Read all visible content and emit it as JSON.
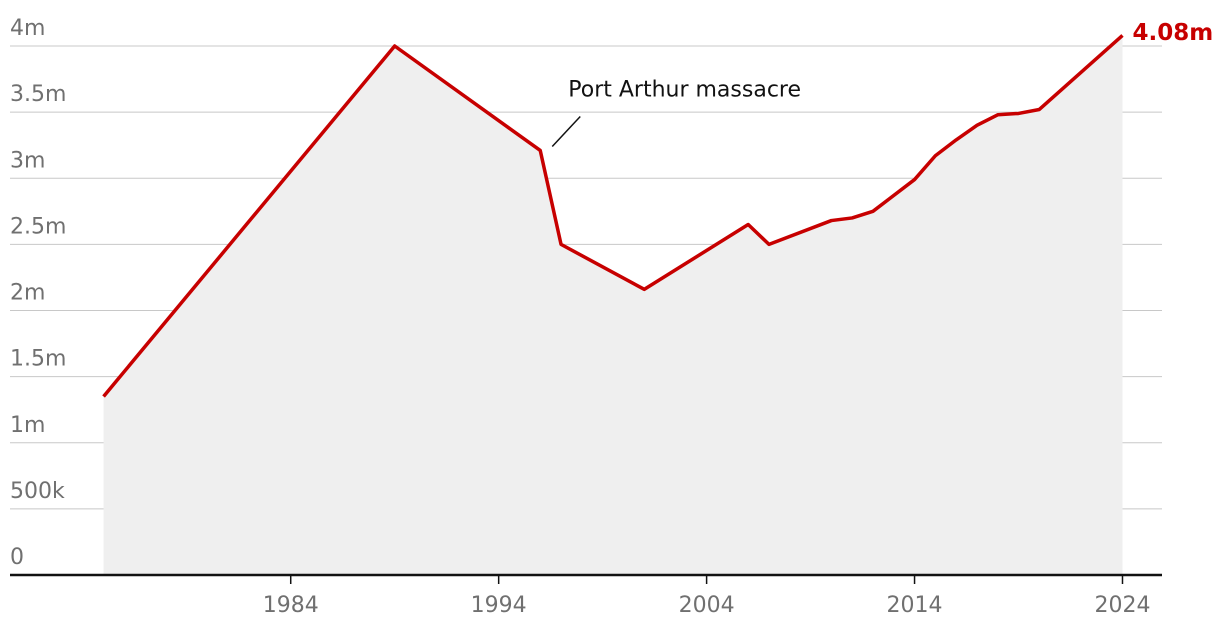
{
  "chart_data": {
    "type": "line",
    "annotation": "Port Arthur massacre",
    "x": [
      1975,
      1989,
      1996,
      1997,
      2001,
      2006,
      2007,
      2010,
      2011,
      2012,
      2014,
      2015,
      2016,
      2017,
      2018,
      2019,
      2020,
      2024
    ],
    "series": [
      {
        "color": "#c70000",
        "values": [
          1.35,
          4.0,
          3.21,
          2.5,
          2.16,
          2.65,
          2.5,
          2.68,
          2.7,
          2.75,
          2.99,
          3.17,
          3.29,
          3.4,
          3.48,
          3.49,
          3.52,
          4.08
        ],
        "value_labels": [
          null,
          null,
          null,
          null,
          null,
          null,
          null,
          null,
          null,
          null,
          null,
          null,
          null,
          null,
          null,
          null,
          null,
          "4.08m"
        ]
      }
    ],
    "area_color": "#efefef",
    "xlim": [
      1970.5,
      2025.9
    ],
    "xticks": [
      1984,
      1994,
      2004,
      2014,
      2024
    ],
    "ylim": [
      0,
      4
    ],
    "yticks": [
      0,
      {
        "value": 0.5,
        "label": "500k"
      },
      {
        "value": 1,
        "label": "1m"
      },
      {
        "value": 1.5,
        "label": "1.5m"
      },
      {
        "value": 2,
        "label": "2m"
      },
      {
        "value": 2.5,
        "label": "2.5m"
      },
      {
        "value": 3,
        "label": "3m"
      },
      {
        "value": 3.5,
        "label": "3.5m"
      },
      {
        "value": 4,
        "label": "4m"
      }
    ],
    "grid": true
  }
}
